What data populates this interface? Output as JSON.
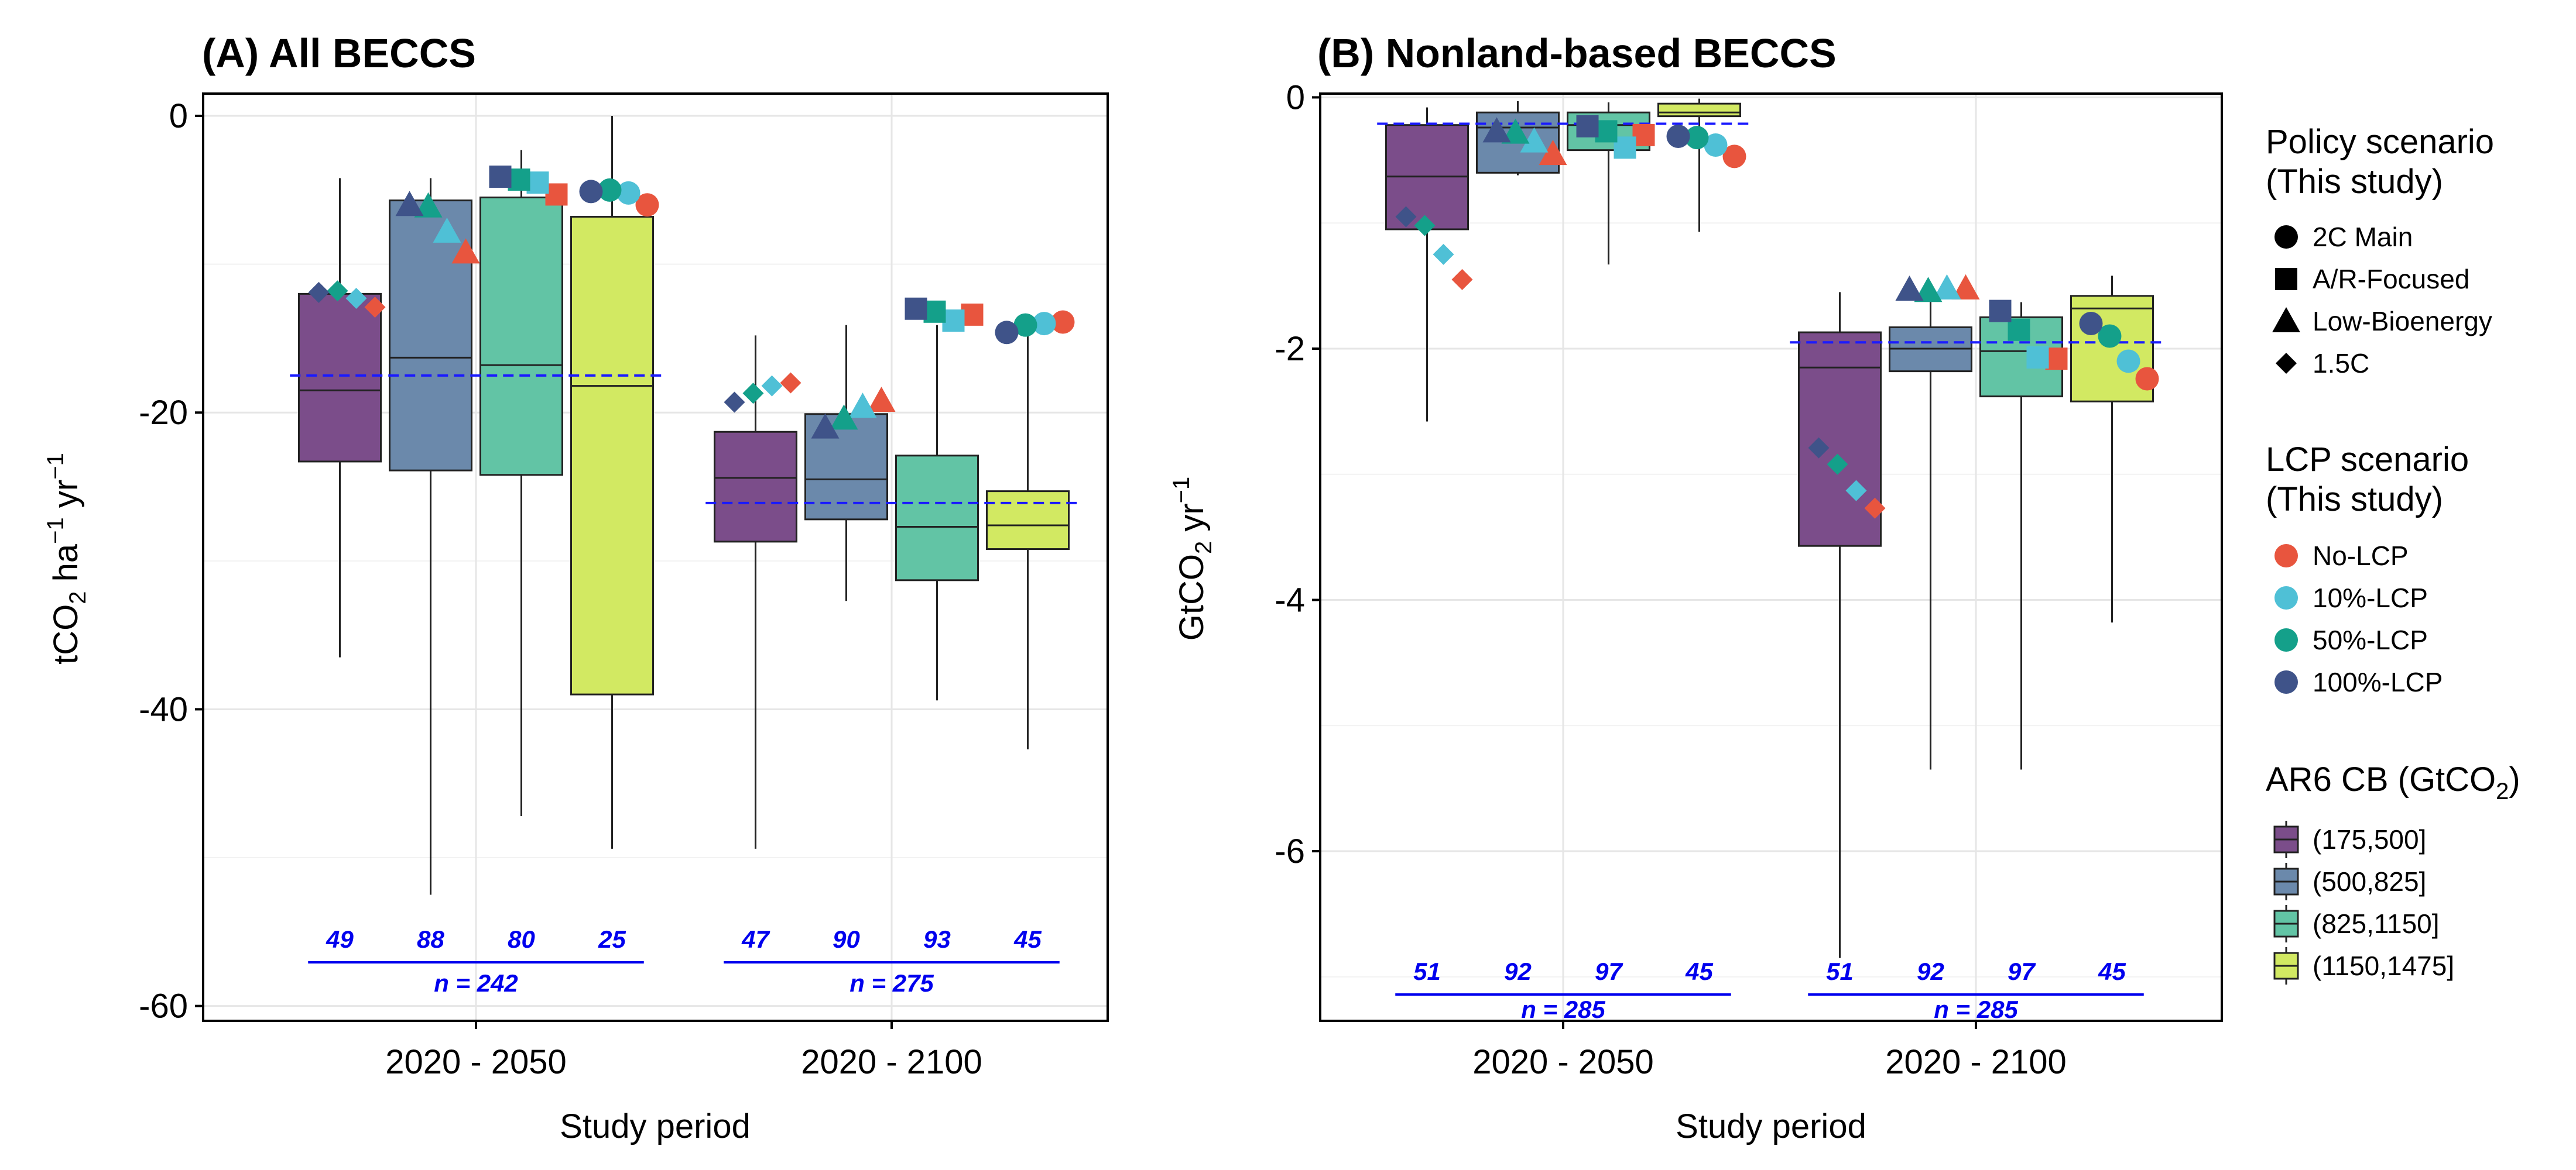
{
  "panels": [
    {
      "title": "(A) All BECCS",
      "ylabel_main": "tCO",
      "ylabel_sub2": "2",
      "ylabel_mid": " ha",
      "ylabel_sup1": "−1",
      "ylabel_mid2": " yr",
      "ylabel_sup2": "−1",
      "xlabel": "Study period"
    },
    {
      "title": "(B) Nonland-based BECCS",
      "ylabel_main": "GtCO",
      "ylabel_sub2": "2",
      "ylabel_mid2": " yr",
      "ylabel_sup2": "−1",
      "xlabel": "Study period"
    }
  ],
  "legend": {
    "policy_title_1": "Policy scenario",
    "policy_title_2": "(This study)",
    "policy_items": [
      {
        "label": "2C Main",
        "shape": "circle"
      },
      {
        "label": "A/R-Focused",
        "shape": "square"
      },
      {
        "label": "Low-Bioenergy",
        "shape": "triangle"
      },
      {
        "label": "1.5C",
        "shape": "diamond"
      }
    ],
    "lcp_title_1": "LCP scenario",
    "lcp_title_2": "(This study)",
    "lcp_items": [
      {
        "label": "No-LCP",
        "color": "#e8553e"
      },
      {
        "label": "10%-LCP",
        "color": "#4fc0d6"
      },
      {
        "label": "50%-LCP",
        "color": "#14a08a"
      },
      {
        "label": "100%-LCP",
        "color": "#3f5389"
      }
    ],
    "cb_title_main": "AR6 CB (GtCO",
    "cb_title_sub": "2",
    "cb_title_end": ")",
    "cb_items": [
      {
        "label": "(175,500]",
        "color": "#7b4d8a"
      },
      {
        "label": "(500,825]",
        "color": "#6b89ab"
      },
      {
        "label": "(825,1150]",
        "color": "#62c4a5"
      },
      {
        "label": "(1150,1475]",
        "color": "#d2e962"
      }
    ]
  },
  "chart_data": [
    {
      "type": "box",
      "title": "(A) All BECCS",
      "xlabel": "Study period",
      "ylabel": "tCO2 ha−1 yr−1",
      "ylim": [
        -61,
        1.5
      ],
      "yticks": [
        0,
        -20,
        -40,
        -60
      ],
      "categories": [
        "2020 - 2050",
        "2020 - 2100"
      ],
      "box_groups": [
        "(175,500]",
        "(500,825]",
        "(825,1150]",
        "(1150,1475]"
      ],
      "boxes": [
        [
          {
            "min": -36.5,
            "q1": -23.3,
            "median": -18.5,
            "q3": -12.0,
            "max": -4.2,
            "n": "49"
          },
          {
            "min": -52.5,
            "q1": -23.9,
            "median": -16.3,
            "q3": -5.7,
            "max": -4.2,
            "n": "88"
          },
          {
            "min": -47.2,
            "q1": -24.2,
            "median": -16.8,
            "q3": -5.5,
            "max": -2.3,
            "n": "80"
          },
          {
            "min": -49.4,
            "q1": -39.0,
            "median": -18.2,
            "q3": -6.8,
            "max": 0.0,
            "n": "25"
          }
        ],
        [
          {
            "min": -49.4,
            "q1": -28.7,
            "median": -24.4,
            "q3": -21.3,
            "max": -14.8,
            "n": "47"
          },
          {
            "min": -32.7,
            "q1": -27.2,
            "median": -24.5,
            "q3": -20.1,
            "max": -14.1,
            "n": "90"
          },
          {
            "min": -39.4,
            "q1": -31.3,
            "median": -27.7,
            "q3": -22.9,
            "max": -14.1,
            "n": "93"
          },
          {
            "min": -42.7,
            "q1": -29.2,
            "median": -27.6,
            "q3": -25.3,
            "max": -13.7,
            "n": "45"
          }
        ]
      ],
      "totals": [
        "n = 242",
        "n = 275"
      ],
      "dashed_mean": [
        -17.5,
        -26.1
      ],
      "scenario_points": [
        [
          {
            "policy": "1.5C",
            "values": [
              -12.9,
              -12.3,
              -11.8,
              -11.9
            ]
          },
          {
            "policy": "Low-Bioenergy",
            "values": [
              -9.2,
              -7.8,
              -6.1,
              -6.0
            ]
          },
          {
            "policy": "A/R-Focused",
            "values": [
              -5.3,
              -4.5,
              -4.3,
              -4.1
            ]
          },
          {
            "policy": "2C Main",
            "values": [
              -6.0,
              -5.2,
              -5.0,
              -5.1
            ]
          }
        ],
        [
          {
            "policy": "1.5C",
            "values": [
              -18.0,
              -18.2,
              -18.7,
              -19.3
            ]
          },
          {
            "policy": "Low-Bioenergy",
            "values": [
              -19.2,
              -19.6,
              -20.4,
              -21.0
            ]
          },
          {
            "policy": "A/R-Focused",
            "values": [
              -13.4,
              -13.8,
              -13.2,
              -13.0
            ]
          },
          {
            "policy": "2C Main",
            "values": [
              -13.9,
              -14.0,
              -14.1,
              -14.6
            ]
          }
        ]
      ]
    },
    {
      "type": "box",
      "title": "(B) Nonland-based BECCS",
      "xlabel": "Study period",
      "ylabel": "GtCO2 yr−1",
      "ylim": [
        -7.35,
        0.03
      ],
      "yticks": [
        0,
        -2,
        -4,
        -6
      ],
      "categories": [
        "2020 - 2050",
        "2020 - 2100"
      ],
      "box_groups": [
        "(175,500]",
        "(500,825]",
        "(825,1150]",
        "(1150,1475]"
      ],
      "boxes": [
        [
          {
            "min": -2.58,
            "q1": -1.05,
            "median": -0.63,
            "q3": -0.22,
            "max": -0.08,
            "n": "51"
          },
          {
            "min": -0.62,
            "q1": -0.6,
            "median": -0.24,
            "q3": -0.12,
            "max": -0.03,
            "n": "92"
          },
          {
            "min": -1.33,
            "q1": -0.42,
            "median": -0.22,
            "q3": -0.12,
            "max": -0.04,
            "n": "97"
          },
          {
            "min": -1.07,
            "q1": -0.15,
            "median": -0.12,
            "q3": -0.05,
            "max": -0.01,
            "n": "45"
          }
        ],
        [
          {
            "min": -6.85,
            "q1": -3.57,
            "median": -2.15,
            "q3": -1.87,
            "max": -1.55,
            "n": "51"
          },
          {
            "min": -5.35,
            "q1": -2.18,
            "median": -2.0,
            "q3": -1.83,
            "max": -1.55,
            "n": "92"
          },
          {
            "min": -5.35,
            "q1": -2.38,
            "median": -2.02,
            "q3": -1.75,
            "max": -1.63,
            "n": "97"
          },
          {
            "min": -4.18,
            "q1": -2.42,
            "median": -1.68,
            "q3": -1.58,
            "max": -1.42,
            "n": "45"
          }
        ]
      ],
      "totals": [
        "n = 285",
        "n = 285"
      ],
      "dashed_mean": [
        -0.21,
        -1.95
      ],
      "scenario_points": [
        [
          {
            "policy": "1.5C",
            "values": [
              -1.45,
              -1.25,
              -1.02,
              -0.95
            ]
          },
          {
            "policy": "Low-Bioenergy",
            "values": [
              -0.45,
              -0.35,
              -0.28,
              -0.27
            ]
          },
          {
            "policy": "A/R-Focused",
            "values": [
              -0.3,
              -0.4,
              -0.27,
              -0.23
            ]
          },
          {
            "policy": "2C Main",
            "values": [
              -0.47,
              -0.38,
              -0.32,
              -0.31
            ]
          }
        ],
        [
          {
            "policy": "1.5C",
            "values": [
              -3.27,
              -3.13,
              -2.92,
              -2.79
            ]
          },
          {
            "policy": "Low-Bioenergy",
            "values": [
              -1.52,
              -1.52,
              -1.54,
              -1.53
            ]
          },
          {
            "policy": "A/R-Focused",
            "values": [
              -2.08,
              -2.07,
              -1.85,
              -1.7
            ]
          },
          {
            "policy": "2C Main",
            "values": [
              -2.24,
              -2.1,
              -1.9,
              -1.8
            ]
          }
        ]
      ]
    }
  ]
}
